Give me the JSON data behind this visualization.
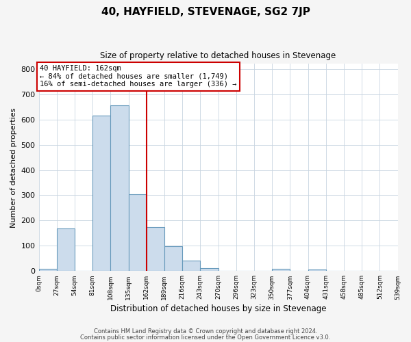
{
  "title": "40, HAYFIELD, STEVENAGE, SG2 7JP",
  "subtitle": "Size of property relative to detached houses in Stevenage",
  "xlabel": "Distribution of detached houses by size in Stevenage",
  "ylabel": "Number of detached properties",
  "bin_edges": [
    0,
    27,
    54,
    81,
    108,
    135,
    162,
    189,
    216,
    243,
    270,
    297,
    324,
    351,
    378,
    405,
    432,
    459,
    486,
    513,
    540
  ],
  "bin_labels": [
    "0sqm",
    "27sqm",
    "54sqm",
    "81sqm",
    "108sqm",
    "135sqm",
    "162sqm",
    "189sqm",
    "216sqm",
    "243sqm",
    "270sqm",
    "296sqm",
    "323sqm",
    "350sqm",
    "377sqm",
    "404sqm",
    "431sqm",
    "458sqm",
    "485sqm",
    "512sqm",
    "539sqm"
  ],
  "counts": [
    10,
    170,
    0,
    615,
    655,
    305,
    175,
    97,
    42,
    12,
    0,
    0,
    0,
    10,
    0,
    5,
    0,
    0,
    0,
    0
  ],
  "bar_facecolor": "#ccdcec",
  "bar_edgecolor": "#6699bb",
  "vline_x": 162,
  "vline_color": "#cc0000",
  "annotation_title": "40 HAYFIELD: 162sqm",
  "annotation_line1": "← 84% of detached houses are smaller (1,749)",
  "annotation_line2": "16% of semi-detached houses are larger (336) →",
  "annotation_box_edgecolor": "#cc0000",
  "ylim": [
    0,
    820
  ],
  "yticks": [
    0,
    100,
    200,
    300,
    400,
    500,
    600,
    700,
    800
  ],
  "footer1": "Contains HM Land Registry data © Crown copyright and database right 2024.",
  "footer2": "Contains public sector information licensed under the Open Government Licence v3.0.",
  "bg_color": "#f5f5f5",
  "plot_bg_color": "#ffffff",
  "grid_color": "#c8d4e0"
}
